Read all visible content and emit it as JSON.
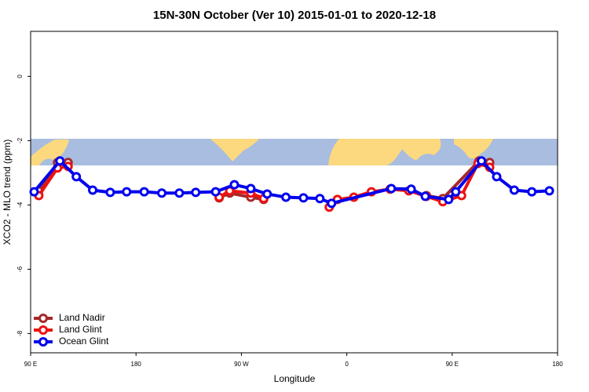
{
  "chart_data": {
    "type": "line",
    "title": "15N-30N October (Ver 10)   2015-01-01 to 2020-12-18",
    "x_label": "Longitude",
    "y_label": "XCO2 - MLO trend (ppm)",
    "xlim": [
      90,
      540
    ],
    "xticks": [
      {
        "value": 90,
        "label": "90 E"
      },
      180,
      {
        "value": 270,
        "label": "90 W"
      },
      {
        "value": 360,
        "label": "0"
      },
      {
        "value": 450,
        "label": "90 E"
      },
      {
        "value": 540,
        "label": "180"
      }
    ],
    "ylim": [
      -8.6,
      1.4
    ],
    "yticks": [
      0,
      -2,
      -4,
      -6,
      -8
    ],
    "legend": "bottomleft",
    "series": [
      {
        "name": "Land Nadir",
        "color": "#a52a2a",
        "x": [
          97,
          113,
          122,
          null,
          251,
          260,
          278,
          289,
          null,
          428,
          442,
          473,
          482
        ],
        "values": [
          -3.56,
          -2.68,
          -2.68,
          null,
          -3.78,
          -3.63,
          -3.76,
          -3.83,
          null,
          -3.71,
          -3.8,
          -2.63,
          -2.68
        ]
      },
      {
        "name": "Land Glint",
        "color": "#ee1111",
        "x": [
          97,
          113,
          122,
          null,
          251,
          260,
          278,
          289,
          null,
          345,
          352,
          366,
          381,
          397,
          413,
          428,
          442,
          458,
          472,
          482
        ],
        "values": [
          -3.71,
          -2.85,
          -2.8,
          null,
          -3.76,
          -3.56,
          -3.63,
          -3.8,
          null,
          -4.07,
          -3.83,
          -3.76,
          -3.59,
          -3.51,
          -3.56,
          -3.73,
          -3.9,
          -3.71,
          -2.71,
          -2.83
        ]
      },
      {
        "name": "Ocean Glint",
        "color": "#0000ee",
        "x": [
          93,
          115,
          129,
          143,
          158,
          172,
          187,
          202,
          217,
          231,
          248,
          264,
          278,
          292,
          308,
          323,
          337,
          347,
          398,
          415,
          427,
          447,
          453,
          475,
          488,
          503,
          518,
          533
        ],
        "values": [
          -3.59,
          -2.63,
          -3.12,
          -3.54,
          -3.61,
          -3.59,
          -3.59,
          -3.63,
          -3.63,
          -3.61,
          -3.59,
          -3.37,
          -3.49,
          -3.66,
          -3.76,
          -3.78,
          -3.8,
          -3.95,
          -3.49,
          -3.51,
          -3.73,
          -3.83,
          -3.59,
          -2.63,
          -3.12,
          -3.54,
          -3.59,
          -3.56
        ]
      }
    ]
  }
}
